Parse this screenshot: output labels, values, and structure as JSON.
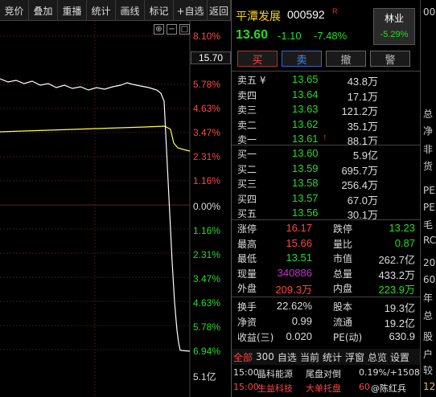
{
  "toolbar": {
    "buttons": [
      "竞价",
      "叠加",
      "重播",
      "统计",
      "画线",
      "标记",
      "+自选",
      "返回"
    ]
  },
  "chart": {
    "mini_icons": [
      "⊕",
      "−",
      "□"
    ],
    "pct_labels": [
      {
        "text": "8.10%",
        "color": "#ff4444"
      },
      {
        "text": "5.78%",
        "color": "#ff4444"
      },
      {
        "text": "4.63%",
        "color": "#ff4444"
      },
      {
        "text": "3.47%",
        "color": "#ff4444"
      },
      {
        "text": "2.31%",
        "color": "#ff4444"
      },
      {
        "text": "1.16%",
        "color": "#ff4444"
      },
      {
        "text": "0.00%",
        "color": "#dddddd"
      },
      {
        "text": "1.16%",
        "color": "#22dd22"
      },
      {
        "text": "2.31%",
        "color": "#22dd22"
      },
      {
        "text": "3.47%",
        "color": "#22dd22"
      },
      {
        "text": "4.63%",
        "color": "#22dd22"
      },
      {
        "text": "5.78%",
        "color": "#22dd22"
      },
      {
        "text": "6.94%",
        "color": "#22dd22"
      }
    ],
    "price_marker": "15.70",
    "volume_label": "5.1亿"
  },
  "quote": {
    "name": "平潭发展",
    "code": "000592",
    "flag": "R",
    "last_price": "13.60",
    "change": "-1.10",
    "change_pct": "-7.48%",
    "sector": {
      "name": "林业",
      "change_pct": "-5.29%"
    },
    "buttons": {
      "buy": "买",
      "sell": "卖",
      "cancel": "撤",
      "alert": "警"
    },
    "asks": [
      {
        "label": "卖五 ¥",
        "price": "13.65",
        "vol": "43.8万"
      },
      {
        "label": "卖四",
        "price": "13.64",
        "vol": "17.1万"
      },
      {
        "label": "卖三",
        "price": "13.63",
        "vol": "121.2万"
      },
      {
        "label": "卖二",
        "price": "13.62",
        "vol": "35.1万"
      },
      {
        "label": "卖一",
        "price": "13.61",
        "vol": "88.1万",
        "arrow": "↑"
      }
    ],
    "bids": [
      {
        "label": "买一",
        "price": "13.60",
        "vol": "5.9亿"
      },
      {
        "label": "买二",
        "price": "13.59",
        "vol": "695.7万"
      },
      {
        "label": "买三",
        "price": "13.58",
        "vol": "256.4万"
      },
      {
        "label": "买四",
        "price": "13.57",
        "vol": "67.0万"
      },
      {
        "label": "买五",
        "price": "13.56",
        "vol": "30.1万"
      }
    ],
    "stats1": [
      {
        "l1": "涨停",
        "v1": "16.17",
        "c1": "#ff4444",
        "l2": "跌停",
        "v2": "13.23",
        "c2": "#22dd22"
      },
      {
        "l1": "最高",
        "v1": "15.66",
        "c1": "#ff4444",
        "l2": "量比",
        "v2": "0.87",
        "c2": "#22dd22"
      },
      {
        "l1": "最低",
        "v1": "13.51",
        "c1": "#22dd22",
        "l2": "市值",
        "v2": "262.7亿",
        "c2": "#dddddd"
      },
      {
        "l1": "现量",
        "v1": "340886",
        "c1": "#cc33cc",
        "l2": "总量",
        "v2": "433.2万",
        "c2": "#dddddd"
      },
      {
        "l1": "外盘",
        "v1": "209.3万",
        "c1": "#ff4444",
        "l2": "内盘",
        "v2": "223.9万",
        "c2": "#22dd22"
      }
    ],
    "stats2": [
      {
        "l1": "换手",
        "v1": "22.62%",
        "c1": "#dddddd",
        "l2": "股本",
        "v2": "19.3亿",
        "c2": "#dddddd"
      },
      {
        "l1": "净资",
        "v1": "0.99",
        "c1": "#dddddd",
        "l2": "流通",
        "v2": "19.2亿",
        "c2": "#dddddd"
      },
      {
        "l1": "收益(三)",
        "v1": "0.020",
        "c1": "#dddddd",
        "l2": "PE(动)",
        "v2": "630.9",
        "c2": "#dddddd"
      }
    ],
    "tabs": [
      "全部",
      "300",
      "自选",
      "当前",
      "统计",
      "浮窗",
      "总览",
      "设置"
    ],
    "ticker": [
      {
        "time": "15:00",
        "name": "晶科能源",
        "event": "尾盘对倒",
        "value": "0.19%/+1508",
        "color": "#dddddd"
      },
      {
        "time": "15:00",
        "name": "生益科技",
        "event": "大单托盘",
        "value": "60",
        "color": "#ff4444"
      }
    ]
  },
  "watermark": "@陈红兵",
  "right_column": [
    "00",
    "总",
    "净",
    "非",
    "货",
    "PE",
    "PE",
    "毛",
    "RC",
    "20",
    "60",
    "年",
    "总",
    "股",
    "户",
    "较",
    "12"
  ]
}
